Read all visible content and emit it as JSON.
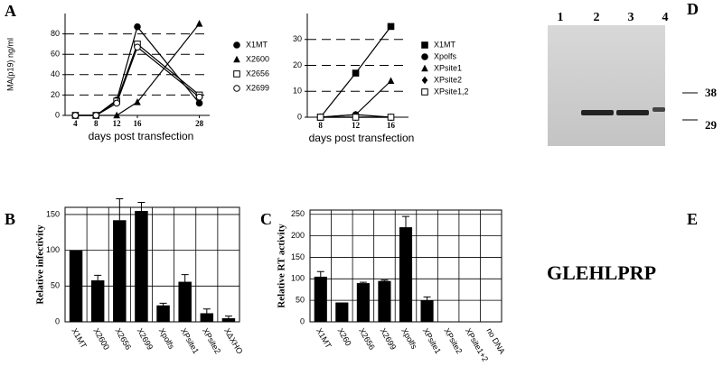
{
  "chart_data": [
    {
      "type": "line",
      "x_label": "days post transfection",
      "y_label": "MA(p19) ng/ml",
      "x": [
        4,
        8,
        12,
        16,
        28
      ],
      "xlim": [
        2,
        30
      ],
      "xticks": [
        4,
        8,
        12,
        16,
        28
      ],
      "ylim": [
        0,
        100
      ],
      "yticks": [
        0,
        20,
        40,
        60,
        80
      ],
      "grid": "dashed",
      "series": [
        {
          "name": "X1MT",
          "marker": "circle",
          "color": "#000000",
          "values": [
            0,
            0,
            15,
            87,
            12
          ]
        },
        {
          "name": "X2600",
          "marker": "triangle",
          "color": "#000000",
          "values": [
            0,
            0,
            0,
            13,
            90
          ]
        },
        {
          "name": "X2656",
          "marker": "square-open",
          "color": "#000000",
          "values": [
            0,
            0,
            14,
            70,
            20
          ]
        },
        {
          "name": "X2699",
          "marker": "circle-open",
          "color": "#000000",
          "values": [
            0,
            0,
            12,
            67,
            18
          ]
        }
      ]
    },
    {
      "type": "line",
      "x_label": "days post transfection",
      "x": [
        8,
        12,
        16
      ],
      "xlim": [
        6.5,
        18
      ],
      "xticks": [
        8,
        12,
        16
      ],
      "ylim": [
        0,
        40
      ],
      "yticks": [
        0,
        10,
        20,
        30
      ],
      "grid": "dashed",
      "series": [
        {
          "name": "X1MT",
          "marker": "square",
          "color": "#000000",
          "values": [
            0,
            17,
            35
          ]
        },
        {
          "name": "Xpolfs",
          "marker": "circle",
          "color": "#000000",
          "values": [
            0,
            1,
            0
          ]
        },
        {
          "name": "XPsite1",
          "marker": "triangle",
          "color": "#000000",
          "values": [
            0,
            1,
            14
          ]
        },
        {
          "name": "XPsite2",
          "marker": "diamond",
          "color": "#000000",
          "values": [
            0,
            0,
            0
          ]
        },
        {
          "name": "XPsite1,2",
          "marker": "square-open",
          "color": "#000000",
          "values": [
            0,
            0,
            0
          ]
        }
      ]
    },
    {
      "type": "bar",
      "y_label": "Relative infectivity",
      "categories": [
        "X1MT",
        "X2600",
        "X2656",
        "X2699",
        "Xpolfs",
        "XPsite1",
        "XPsite2",
        "XΔXHO"
      ],
      "values": [
        100,
        58,
        142,
        155,
        23,
        56,
        12,
        5
      ],
      "errors": [
        0,
        7,
        30,
        12,
        3,
        10,
        6,
        3
      ],
      "color": "#000000",
      "ylim": [
        0,
        160
      ],
      "yticks": [
        0,
        50,
        100,
        150
      ],
      "grid": "solid"
    },
    {
      "type": "bar",
      "y_label": "Relative RT activity",
      "categories": [
        "X1MT",
        "X260",
        "X2656",
        "X2699",
        "Xpolfs",
        "XPsite1",
        "XPsite2",
        "XPsite1+2",
        "no DNA"
      ],
      "values": [
        105,
        45,
        90,
        95,
        220,
        50,
        0,
        0,
        0
      ],
      "errors": [
        12,
        0,
        2,
        2,
        25,
        8,
        0,
        0,
        0
      ],
      "color": "#000000",
      "ylim": [
        0,
        260
      ],
      "yticks": [
        0,
        50,
        100,
        150,
        200,
        250
      ],
      "grid": "solid"
    }
  ],
  "panel_labels": [
    "A",
    "B",
    "C",
    "D",
    "E"
  ],
  "gel": {
    "lanes": [
      "1",
      "2",
      "3",
      "4"
    ],
    "markers": [
      "38",
      "29"
    ]
  },
  "sequence": "GLEHLPRP"
}
